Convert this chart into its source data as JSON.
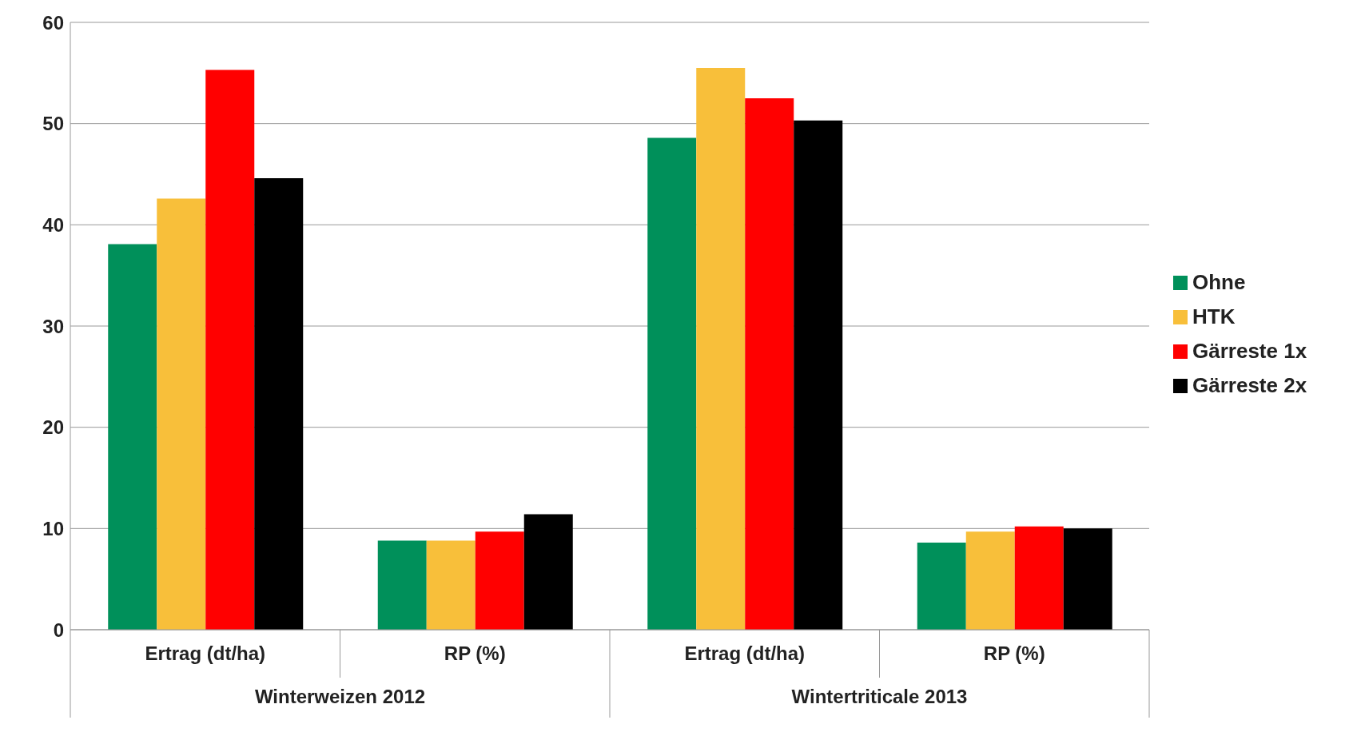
{
  "chart_data": {
    "type": "bar",
    "categories": [
      "Ertrag (dt/ha)",
      "RP (%)",
      "Ertrag (dt/ha)",
      "RP (%)"
    ],
    "series": [
      {
        "name": "Ohne",
        "color": "#00905a",
        "values": [
          38.1,
          8.8,
          48.6,
          8.6
        ]
      },
      {
        "name": "HTK",
        "color": "#f8bf3a",
        "values": [
          42.6,
          8.8,
          55.5,
          9.7
        ]
      },
      {
        "name": "Gärreste 1x",
        "color": "#ff0000",
        "values": [
          55.3,
          9.7,
          52.5,
          10.2
        ]
      },
      {
        "name": "Gärreste 2x",
        "color": "#000000",
        "values": [
          44.6,
          11.4,
          50.3,
          10.0
        ]
      }
    ],
    "annotations": [
      "Winterweizen 2012",
      "Wintertriticale 2013"
    ],
    "ylim": [
      0,
      60
    ],
    "yticks": [
      0,
      10,
      20,
      30,
      40,
      50,
      60
    ],
    "grid": "y",
    "legend": "right"
  }
}
